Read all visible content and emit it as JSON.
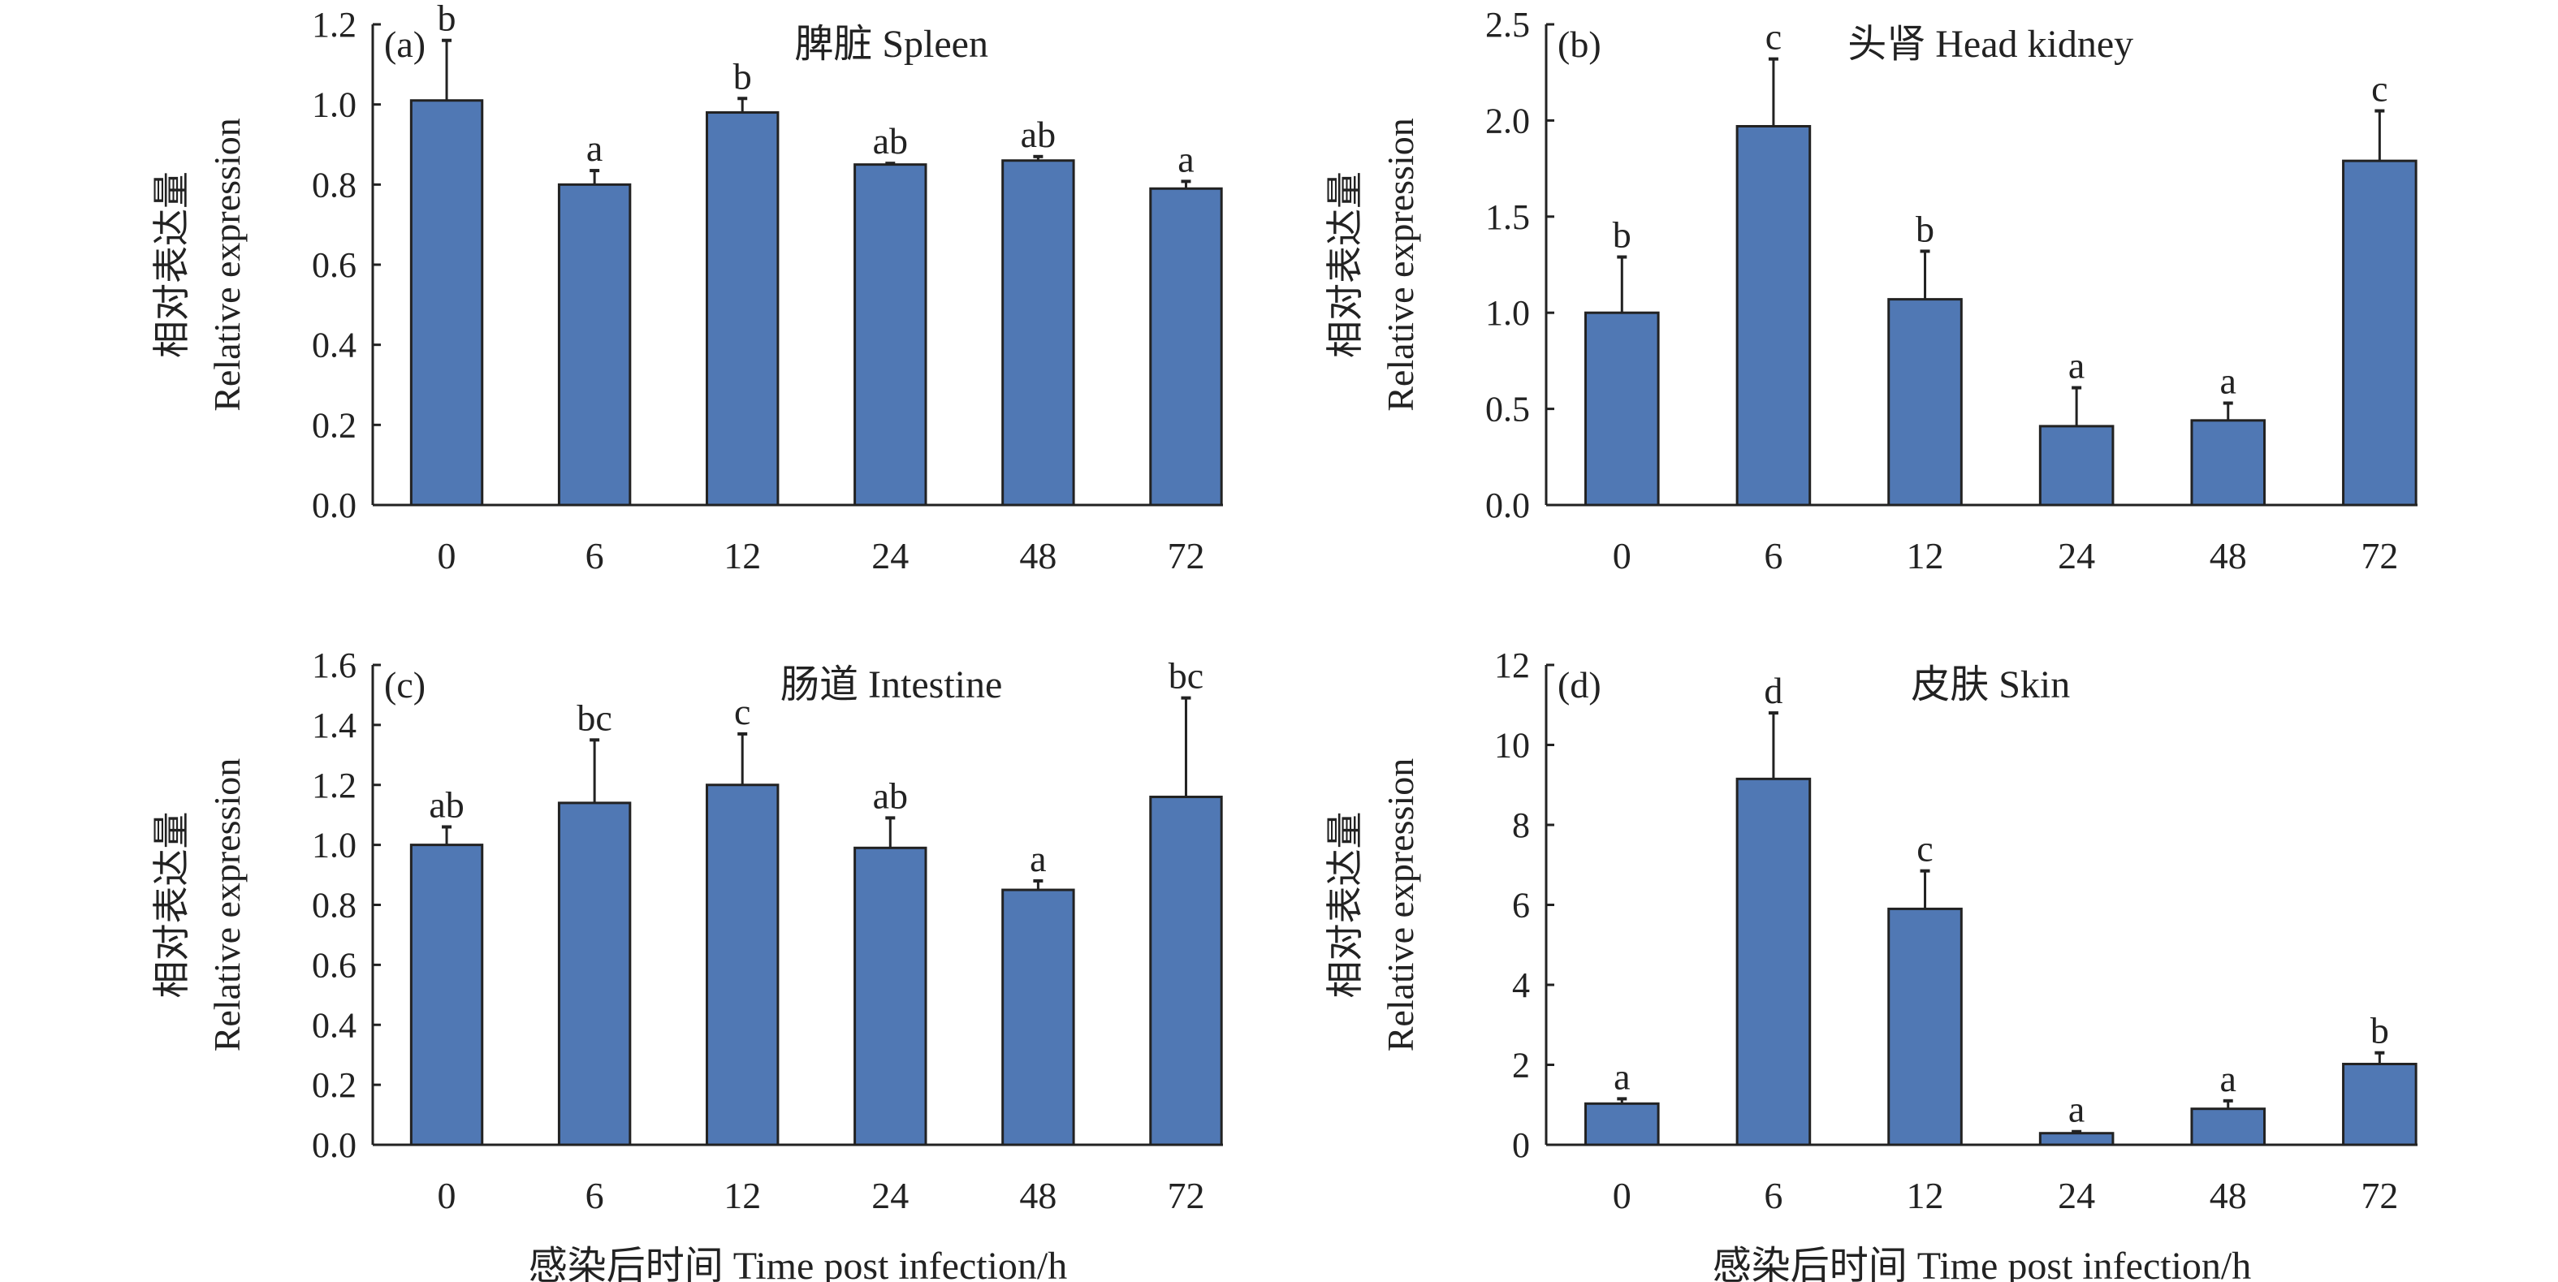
{
  "chart_data": [
    {
      "type": "bar",
      "panel_label": "(a)",
      "title": "脾脏 Spleen",
      "ylabel_cn": "相对表达量",
      "ylabel_en": "Relative expression",
      "xlabel": "",
      "categories": [
        "0",
        "6",
        "12",
        "24",
        "48",
        "72"
      ],
      "values": [
        1.01,
        0.8,
        0.98,
        0.85,
        0.86,
        0.79
      ],
      "errors": [
        0.15,
        0.035,
        0.035,
        0.003,
        0.01,
        0.018
      ],
      "letters": [
        "b",
        "a",
        "b",
        "ab",
        "ab",
        "a"
      ],
      "ylim": [
        0,
        1.2
      ],
      "yticks": [
        "0.0",
        "0.2",
        "0.4",
        "0.6",
        "0.8",
        "1.0",
        "1.2"
      ],
      "bar_color": "#5078B4",
      "grid": false
    },
    {
      "type": "bar",
      "panel_label": "(b)",
      "title": "头肾 Head kidney",
      "ylabel_cn": "相对表达量",
      "ylabel_en": "Relative expression",
      "xlabel": "",
      "categories": [
        "0",
        "6",
        "12",
        "24",
        "48",
        "72"
      ],
      "values": [
        1.0,
        1.97,
        1.07,
        0.41,
        0.44,
        1.79
      ],
      "errors": [
        0.29,
        0.35,
        0.25,
        0.2,
        0.09,
        0.26
      ],
      "letters": [
        "b",
        "c",
        "b",
        "a",
        "a",
        "c"
      ],
      "ylim": [
        0,
        2.5
      ],
      "yticks": [
        "0.0",
        "0.5",
        "1.0",
        "1.5",
        "2.0",
        "2.5"
      ],
      "bar_color": "#5078B4",
      "grid": false
    },
    {
      "type": "bar",
      "panel_label": "(c)",
      "title": "肠道 Intestine",
      "ylabel_cn": "相对表达量",
      "ylabel_en": "Relative expression",
      "xlabel": "感染后时间 Time post infection/h",
      "categories": [
        "0",
        "6",
        "12",
        "24",
        "48",
        "72"
      ],
      "values": [
        1.0,
        1.14,
        1.2,
        0.99,
        0.85,
        1.16
      ],
      "errors": [
        0.06,
        0.21,
        0.17,
        0.1,
        0.03,
        0.33
      ],
      "letters": [
        "ab",
        "bc",
        "c",
        "ab",
        "a",
        "bc"
      ],
      "ylim": [
        0,
        1.6
      ],
      "yticks": [
        "0.0",
        "0.2",
        "0.4",
        "0.6",
        "0.8",
        "1.0",
        "1.2",
        "1.4",
        "1.6"
      ],
      "bar_color": "#5078B4",
      "grid": false
    },
    {
      "type": "bar",
      "panel_label": "(d)",
      "title": "皮肤 Skin",
      "ylabel_cn": "相对表达量",
      "ylabel_en": "Relative expression",
      "xlabel": "感染后时间 Time post infection/h",
      "categories": [
        "0",
        "6",
        "12",
        "24",
        "48",
        "72"
      ],
      "values": [
        1.03,
        9.15,
        5.9,
        0.29,
        0.9,
        2.02
      ],
      "errors": [
        0.12,
        1.65,
        0.95,
        0.04,
        0.2,
        0.28
      ],
      "letters": [
        "a",
        "d",
        "c",
        "a",
        "a",
        "b"
      ],
      "ylim": [
        0,
        12
      ],
      "yticks": [
        "0",
        "2",
        "4",
        "6",
        "8",
        "10",
        "12"
      ],
      "bar_color": "#5078B4",
      "grid": false
    }
  ]
}
